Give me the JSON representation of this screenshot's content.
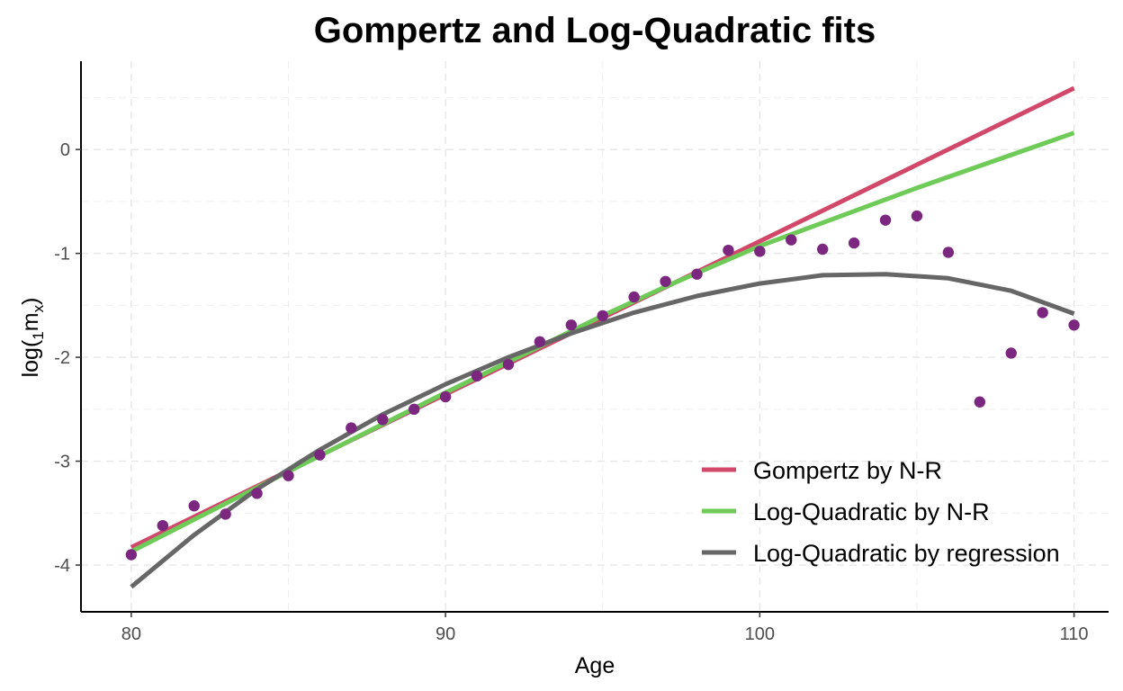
{
  "colors": {
    "points": "#7b2780",
    "gompertz": "#d1486b",
    "logquad_nr": "#6ecb57",
    "logquad_reg": "#666666",
    "axis": "#000000",
    "grid": "#e6e6e6"
  },
  "chart_data": {
    "type": "scatter+line",
    "title": "Gompertz and Log-Quadratic fits",
    "xlabel": "Age",
    "ylabel": {
      "base": "log(",
      "sub1": "1",
      "mid": "m",
      "sub2": "x",
      "end": ")"
    },
    "xlim": [
      78.4,
      111.1
    ],
    "ylim": [
      -4.45,
      0.85
    ],
    "x_ticks": [
      80,
      90,
      100,
      110
    ],
    "y_ticks": [
      0,
      -1,
      -2,
      -3,
      -4
    ],
    "x_tick_labels": [
      "80",
      "90",
      "100",
      "110"
    ],
    "y_tick_labels": [
      "0",
      "-1",
      "-2",
      "-3",
      "-4"
    ],
    "grid": "major and minor, dashed",
    "legend_position": "bottom-right",
    "observed": {
      "x": [
        80,
        81,
        82,
        83,
        84,
        85,
        86,
        87,
        88,
        89,
        90,
        91,
        92,
        93,
        94,
        95,
        96,
        97,
        98,
        99,
        100,
        101,
        102,
        103,
        104,
        105,
        106,
        107,
        108,
        109,
        110
      ],
      "y": [
        -3.9,
        -3.62,
        -3.43,
        -3.51,
        -3.31,
        -3.14,
        -2.94,
        -2.68,
        -2.6,
        -2.5,
        -2.38,
        -2.18,
        -2.07,
        -1.85,
        -1.69,
        -1.6,
        -1.42,
        -1.27,
        -1.2,
        -0.97,
        -0.98,
        -0.87,
        -0.96,
        -0.9,
        -0.68,
        -0.64,
        -0.99,
        -2.43,
        -1.96,
        -1.57,
        -1.69
      ]
    },
    "series": [
      {
        "name": "Gompertz by N-R",
        "type": "line",
        "x": [
          80,
          110
        ],
        "y": [
          -3.83,
          0.59
        ]
      },
      {
        "name": "Log-Quadratic by N-R",
        "type": "line",
        "x": [
          80,
          85,
          90,
          95,
          97,
          100,
          105,
          110
        ],
        "y": [
          -3.87,
          -3.1,
          -2.34,
          -1.6,
          -1.32,
          -0.93,
          -0.37,
          0.16
        ]
      },
      {
        "name": "Log-Quadratic by regression",
        "type": "line",
        "x": [
          80,
          82,
          84,
          86,
          88,
          90,
          92,
          94,
          96,
          98,
          100,
          102,
          104,
          106,
          108,
          110
        ],
        "y": [
          -4.21,
          -3.71,
          -3.27,
          -2.89,
          -2.55,
          -2.26,
          -2.0,
          -1.77,
          -1.57,
          -1.41,
          -1.29,
          -1.21,
          -1.2,
          -1.24,
          -1.36,
          -1.58
        ]
      }
    ]
  }
}
